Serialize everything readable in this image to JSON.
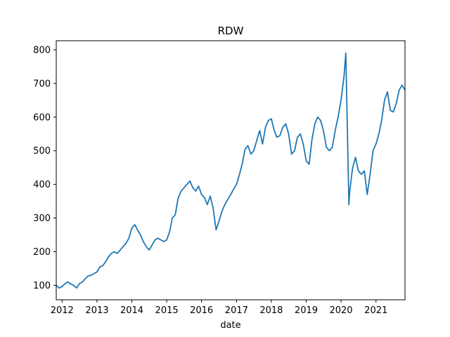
{
  "chart_data": {
    "type": "line",
    "title": "RDW",
    "xlabel": "date",
    "ylabel": "",
    "xlim": [
      "2011-11-01",
      "2021-11-01"
    ],
    "ylim": [
      57,
      827
    ],
    "x_ticks": [
      "2012-01-01",
      "2013-01-01",
      "2014-01-01",
      "2015-01-01",
      "2016-01-01",
      "2017-01-01",
      "2018-01-01",
      "2019-01-01",
      "2020-01-01",
      "2021-01-01"
    ],
    "x_tick_labels": [
      "2012",
      "2013",
      "2014",
      "2015",
      "2016",
      "2017",
      "2018",
      "2019",
      "2020",
      "2021"
    ],
    "y_ticks": [
      100,
      200,
      300,
      400,
      500,
      600,
      700,
      800
    ],
    "y_tick_labels": [
      "100",
      "200",
      "300",
      "400",
      "500",
      "600",
      "700",
      "800"
    ],
    "grid": false,
    "line_color": "#1f77b4",
    "series": [
      {
        "x": [
          "2011-11-01",
          "2011-12-01",
          "2012-01-01",
          "2012-02-01",
          "2012-03-01",
          "2012-04-01",
          "2012-05-01",
          "2012-06-01",
          "2012-07-01",
          "2012-08-01",
          "2012-09-01",
          "2012-10-01",
          "2012-11-01",
          "2012-12-01",
          "2013-01-01",
          "2013-02-01",
          "2013-03-01",
          "2013-04-01",
          "2013-05-01",
          "2013-06-01",
          "2013-07-01",
          "2013-08-01",
          "2013-09-01",
          "2013-10-01",
          "2013-11-01",
          "2013-12-01",
          "2014-01-01",
          "2014-02-01",
          "2014-03-01",
          "2014-04-01",
          "2014-05-01",
          "2014-06-01",
          "2014-07-01",
          "2014-08-01",
          "2014-09-01",
          "2014-10-01",
          "2014-11-01",
          "2014-12-01",
          "2015-01-01",
          "2015-02-01",
          "2015-03-01",
          "2015-04-01",
          "2015-05-01",
          "2015-06-01",
          "2015-07-01",
          "2015-08-01",
          "2015-09-01",
          "2015-10-01",
          "2015-11-01",
          "2015-12-01",
          "2016-01-01",
          "2016-02-01",
          "2016-03-01",
          "2016-04-01",
          "2016-05-01",
          "2016-06-01",
          "2016-07-01",
          "2016-08-01",
          "2016-09-01",
          "2016-10-01",
          "2016-11-01",
          "2016-12-01",
          "2017-01-01",
          "2017-02-01",
          "2017-03-01",
          "2017-04-01",
          "2017-05-01",
          "2017-06-01",
          "2017-07-01",
          "2017-08-01",
          "2017-09-01",
          "2017-10-01",
          "2017-11-01",
          "2017-12-01",
          "2018-01-01",
          "2018-02-01",
          "2018-03-01",
          "2018-04-01",
          "2018-05-01",
          "2018-06-01",
          "2018-07-01",
          "2018-08-01",
          "2018-09-01",
          "2018-10-01",
          "2018-11-01",
          "2018-12-01",
          "2019-01-01",
          "2019-02-01",
          "2019-03-01",
          "2019-04-01",
          "2019-05-01",
          "2019-06-01",
          "2019-07-01",
          "2019-08-01",
          "2019-09-01",
          "2019-10-01",
          "2019-11-01",
          "2019-12-01",
          "2020-01-01",
          "2020-02-01",
          "2020-02-20",
          "2020-03-05",
          "2020-03-23",
          "2020-04-01",
          "2020-05-01",
          "2020-06-01",
          "2020-07-01",
          "2020-08-01",
          "2020-09-01",
          "2020-10-01",
          "2020-11-01",
          "2020-12-01",
          "2021-01-01",
          "2021-02-01",
          "2021-03-01",
          "2021-04-01",
          "2021-05-01",
          "2021-06-01",
          "2021-07-01",
          "2021-08-01",
          "2021-09-01",
          "2021-10-01",
          "2021-11-01"
        ],
        "y": [
          100,
          92,
          96,
          105,
          110,
          104,
          100,
          92,
          105,
          110,
          120,
          128,
          130,
          135,
          140,
          155,
          158,
          170,
          185,
          195,
          200,
          195,
          205,
          215,
          225,
          240,
          270,
          280,
          265,
          250,
          230,
          215,
          205,
          220,
          235,
          240,
          235,
          230,
          235,
          260,
          300,
          310,
          360,
          380,
          390,
          400,
          410,
          390,
          380,
          395,
          370,
          360,
          340,
          365,
          330,
          265,
          290,
          320,
          340,
          355,
          370,
          385,
          400,
          430,
          460,
          505,
          515,
          490,
          500,
          530,
          560,
          520,
          570,
          590,
          595,
          560,
          540,
          545,
          570,
          580,
          550,
          490,
          500,
          540,
          550,
          520,
          470,
          460,
          530,
          580,
          600,
          590,
          560,
          510,
          500,
          510,
          560,
          600,
          650,
          720,
          790,
          600,
          340,
          380,
          450,
          480,
          440,
          430,
          440,
          370,
          430,
          500,
          520,
          550,
          590,
          650,
          675,
          620,
          615,
          640,
          680,
          695,
          680
        ]
      }
    ]
  }
}
